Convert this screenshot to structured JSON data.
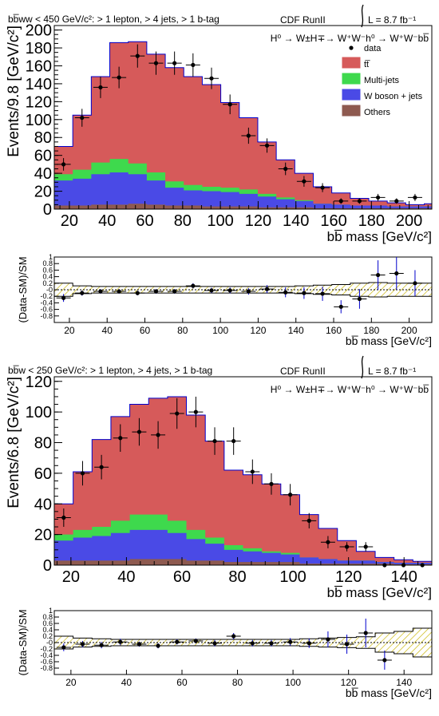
{
  "colors": {
    "ttbar": "#d65a5a",
    "multijet": "#3ed94d",
    "wjets": "#4a4ae6",
    "others": "#8e5a50",
    "outline": "#0000cc",
    "hatch": "#c8b400"
  },
  "chart_data": [
    {
      "type": "area",
      "stacked": true,
      "header_left": "bb̅ww < 450 GeV/c²: > 1 lepton, > 4 jets, > 1 b-tag",
      "header_center": "CDF RunII",
      "lumi": "L = 8.7 fb⁻¹",
      "process": "H⁰ → W±H∓→ W⁺W⁻h⁰ → W⁺W⁻bb̅",
      "ylabel": "Events/9.8 [GeV/c²]",
      "xlabel": "bb̅ mass [GeV/c²]",
      "xlim": [
        12,
        212
      ],
      "ylim": [
        0,
        205
      ],
      "yticks": [
        0,
        20,
        40,
        60,
        80,
        100,
        120,
        140,
        160,
        180,
        200
      ],
      "xticks": [
        20,
        40,
        60,
        80,
        100,
        120,
        140,
        160,
        180,
        200
      ],
      "bin_edges": [
        12,
        21.8,
        31.6,
        41.4,
        51.2,
        61,
        70.8,
        80.6,
        90.4,
        100.2,
        110,
        119.8,
        129.6,
        139.4,
        149.2,
        159,
        168.8,
        178.6,
        188.4,
        198.2,
        208,
        212
      ],
      "legend": [
        {
          "label": "data",
          "kind": "marker"
        },
        {
          "label": "tt̅",
          "key": "ttbar"
        },
        {
          "label": "Multi-jets",
          "key": "multijet"
        },
        {
          "label": "W boson + jets",
          "key": "wjets"
        },
        {
          "label": "Others",
          "key": "others"
        }
      ],
      "series": [
        {
          "name": "Others",
          "key": "others",
          "values": [
            4,
            4,
            5,
            5,
            6,
            5,
            4,
            4,
            3,
            3,
            3,
            2,
            2,
            2,
            1,
            1,
            1,
            1,
            1,
            1,
            1
          ]
        },
        {
          "name": "W boson + jets",
          "key": "wjets",
          "values": [
            28,
            30,
            34,
            36,
            33,
            27,
            20,
            17,
            17,
            16,
            14,
            12,
            9,
            7,
            5,
            4,
            3,
            3,
            2,
            2,
            2
          ]
        },
        {
          "name": "Multi-jets",
          "key": "multijet",
          "values": [
            7,
            10,
            13,
            15,
            12,
            9,
            7,
            6,
            5,
            5,
            5,
            3,
            2,
            1,
            0,
            0,
            0,
            0,
            0,
            0,
            0
          ]
        },
        {
          "name": "tt̅",
          "key": "ttbar",
          "values": [
            31,
            61,
            96,
            130,
            136,
            132,
            127,
            121,
            114,
            95,
            80,
            58,
            42,
            30,
            19,
            13,
            8,
            5,
            4,
            2,
            3
          ]
        }
      ],
      "data_points": [
        {
          "x": 16.9,
          "y": 50,
          "err": 7
        },
        {
          "x": 26.7,
          "y": 102,
          "err": 10
        },
        {
          "x": 36.5,
          "y": 136,
          "err": 12
        },
        {
          "x": 46.3,
          "y": 147,
          "err": 12
        },
        {
          "x": 56.1,
          "y": 171,
          "err": 13
        },
        {
          "x": 65.9,
          "y": 163,
          "err": 13
        },
        {
          "x": 75.7,
          "y": 163,
          "err": 13
        },
        {
          "x": 85.5,
          "y": 161,
          "err": 13
        },
        {
          "x": 95.3,
          "y": 146,
          "err": 12
        },
        {
          "x": 105.1,
          "y": 117,
          "err": 11
        },
        {
          "x": 114.9,
          "y": 82,
          "err": 9
        },
        {
          "x": 124.7,
          "y": 71,
          "err": 8
        },
        {
          "x": 134.5,
          "y": 45,
          "err": 7
        },
        {
          "x": 144.3,
          "y": 31,
          "err": 6
        },
        {
          "x": 154.1,
          "y": 24,
          "err": 5
        },
        {
          "x": 163.9,
          "y": 9,
          "err": 3
        },
        {
          "x": 173.7,
          "y": 9,
          "err": 3
        },
        {
          "x": 183.5,
          "y": 13,
          "err": 4
        },
        {
          "x": 193.3,
          "y": 9,
          "err": 3
        },
        {
          "x": 203.1,
          "y": 13,
          "err": 4
        }
      ]
    },
    {
      "type": "scatter",
      "role": "ratio",
      "ylabel": "(Data-SM)/SM",
      "xlabel": "bb̅ mass [GeV/c²]",
      "xlim": [
        12,
        212
      ],
      "ylim": [
        -1,
        1
      ],
      "yticks": [
        -0.8,
        -0.6,
        -0.4,
        -0.2,
        0,
        0.2,
        0.4,
        0.6,
        0.8,
        1
      ],
      "ytick_labels": [
        "-0.8",
        "-0.6",
        "-0.4",
        "-0.2",
        "-0",
        "0.2",
        "0.4",
        "0.6",
        "0.8",
        "1"
      ],
      "xticks": [
        20,
        40,
        60,
        80,
        100,
        120,
        140,
        160,
        180,
        200
      ],
      "band": [
        0.2,
        0.12,
        0.1,
        0.1,
        0.1,
        0.1,
        0.1,
        0.1,
        0.1,
        0.1,
        0.1,
        0.1,
        0.1,
        0.12,
        0.14,
        0.16,
        0.2,
        0.22,
        0.2,
        0.2,
        0.2
      ],
      "data_points": [
        {
          "x": 16.9,
          "y": -0.25,
          "err": 0.12
        },
        {
          "x": 26.7,
          "y": -0.1,
          "err": 0.08
        },
        {
          "x": 36.5,
          "y": -0.05,
          "err": 0.07
        },
        {
          "x": 46.3,
          "y": -0.05,
          "err": 0.07
        },
        {
          "x": 56.1,
          "y": -0.1,
          "err": 0.07
        },
        {
          "x": 65.9,
          "y": -0.05,
          "err": 0.07
        },
        {
          "x": 75.7,
          "y": -0.05,
          "err": 0.07
        },
        {
          "x": 85.5,
          "y": 0.12,
          "err": 0.08
        },
        {
          "x": 95.3,
          "y": -0.02,
          "err": 0.08
        },
        {
          "x": 105.1,
          "y": -0.02,
          "err": 0.09
        },
        {
          "x": 114.9,
          "y": -0.05,
          "err": 0.1
        },
        {
          "x": 124.7,
          "y": 0.02,
          "err": 0.12
        },
        {
          "x": 134.5,
          "y": -0.08,
          "err": 0.15
        },
        {
          "x": 144.3,
          "y": -0.1,
          "err": 0.18
        },
        {
          "x": 154.1,
          "y": -0.12,
          "err": 0.22
        },
        {
          "x": 163.9,
          "y": -0.52,
          "err": 0.2
        },
        {
          "x": 173.7,
          "y": -0.28,
          "err": 0.3
        },
        {
          "x": 183.5,
          "y": 0.45,
          "err": 0.45
        },
        {
          "x": 193.3,
          "y": 0.5,
          "err": 0.5
        },
        {
          "x": 203.1,
          "y": 0.2,
          "err": 0.4
        }
      ]
    },
    {
      "type": "area",
      "stacked": true,
      "header_left": "bb̅w < 250 GeV/c²: > 1 lepton, > 4 jets, > 1 b-tag",
      "header_center": "CDF RunII",
      "lumi": "L = 8.7 fb⁻¹",
      "process": "H⁰ → W±H∓→ W⁺W⁻h⁰ → W⁺W⁻bb̅",
      "ylabel": "Events/6.8 [GeV/c²]",
      "xlabel": "bb̅ mass [GeV/c²]",
      "xlim": [
        14,
        150
      ],
      "ylim": [
        0,
        123
      ],
      "yticks": [
        0,
        20,
        40,
        60,
        80,
        100,
        120
      ],
      "xticks": [
        20,
        40,
        60,
        80,
        100,
        120,
        140
      ],
      "bin_edges": [
        14,
        20.8,
        27.6,
        34.4,
        41.2,
        48,
        54.8,
        61.6,
        68.4,
        75.2,
        82,
        88.8,
        95.6,
        102.4,
        109.2,
        116,
        122.8,
        129.6,
        136.4,
        143.2,
        150
      ],
      "series": [
        {
          "name": "Others",
          "key": "others",
          "values": [
            3,
            3,
            3,
            3,
            4,
            4,
            4,
            3,
            3,
            2,
            2,
            2,
            2,
            1,
            1,
            1,
            1,
            1,
            0.5,
            0.5
          ]
        },
        {
          "name": "W boson + jets",
          "key": "wjets",
          "values": [
            13,
            15,
            16,
            18,
            19,
            19,
            17,
            14,
            11,
            8,
            7,
            6,
            5,
            4,
            3,
            2,
            2,
            1,
            1,
            1
          ]
        },
        {
          "name": "Multi-jets",
          "key": "multijet",
          "values": [
            4,
            5,
            6,
            8,
            10,
            10,
            8,
            6,
            4,
            3,
            2,
            1,
            1,
            0,
            0,
            0,
            0,
            0,
            0,
            0
          ]
        },
        {
          "name": "tt̅",
          "key": "ttbar",
          "values": [
            20,
            38,
            57,
            68,
            72,
            76,
            81,
            75,
            63,
            49,
            48,
            44,
            38,
            28,
            20,
            13,
            6,
            3,
            2,
            1
          ]
        }
      ],
      "data_points": [
        {
          "x": 17.4,
          "y": 31,
          "err": 6
        },
        {
          "x": 24.2,
          "y": 60,
          "err": 8
        },
        {
          "x": 31,
          "y": 64,
          "err": 8
        },
        {
          "x": 37.8,
          "y": 83,
          "err": 9
        },
        {
          "x": 44.6,
          "y": 87,
          "err": 9
        },
        {
          "x": 51.4,
          "y": 85,
          "err": 9
        },
        {
          "x": 58.2,
          "y": 99,
          "err": 10
        },
        {
          "x": 65,
          "y": 100,
          "err": 10
        },
        {
          "x": 71.8,
          "y": 81,
          "err": 9
        },
        {
          "x": 78.6,
          "y": 81,
          "err": 9
        },
        {
          "x": 85.4,
          "y": 61,
          "err": 8
        },
        {
          "x": 92.2,
          "y": 53,
          "err": 7
        },
        {
          "x": 99,
          "y": 46,
          "err": 7
        },
        {
          "x": 105.8,
          "y": 29,
          "err": 5
        },
        {
          "x": 112.6,
          "y": 15,
          "err": 4
        },
        {
          "x": 119.4,
          "y": 12,
          "err": 3
        },
        {
          "x": 126.2,
          "y": 12,
          "err": 3
        },
        {
          "x": 133,
          "y": 0,
          "err": 0
        },
        {
          "x": 139.8,
          "y": 0,
          "err": 0
        },
        {
          "x": 146.6,
          "y": 0,
          "err": 0
        }
      ]
    },
    {
      "type": "scatter",
      "role": "ratio",
      "ylabel": "(Data-SM)/SM",
      "xlabel": "bb̅ mass [GeV/c²]",
      "xlim": [
        14,
        150
      ],
      "ylim": [
        -1,
        1
      ],
      "yticks": [
        -0.8,
        -0.6,
        -0.4,
        -0.2,
        0,
        0.2,
        0.4,
        0.6,
        0.8,
        1
      ],
      "ytick_labels": [
        "-0.8",
        "-0.6",
        "-0.4",
        "-0.2",
        "-0",
        "0.2",
        "0.4",
        "0.6",
        "0.8",
        "1"
      ],
      "xticks": [
        20,
        40,
        60,
        80,
        100,
        120,
        140
      ],
      "band": [
        0.2,
        0.14,
        0.12,
        0.1,
        0.1,
        0.1,
        0.1,
        0.1,
        0.1,
        0.1,
        0.1,
        0.1,
        0.1,
        0.12,
        0.14,
        0.16,
        0.18,
        0.3,
        0.35,
        0.45
      ],
      "data_points": [
        {
          "x": 17.4,
          "y": -0.15,
          "err": 0.12
        },
        {
          "x": 24.2,
          "y": -0.05,
          "err": 0.1
        },
        {
          "x": 31,
          "y": -0.08,
          "err": 0.1
        },
        {
          "x": 37.8,
          "y": 0.02,
          "err": 0.1
        },
        {
          "x": 44.6,
          "y": -0.05,
          "err": 0.08
        },
        {
          "x": 51.4,
          "y": -0.1,
          "err": 0.08
        },
        {
          "x": 58.2,
          "y": 0.02,
          "err": 0.08
        },
        {
          "x": 65,
          "y": 0.05,
          "err": 0.08
        },
        {
          "x": 71.8,
          "y": -0.02,
          "err": 0.1
        },
        {
          "x": 78.6,
          "y": 0.2,
          "err": 0.1
        },
        {
          "x": 85.4,
          "y": -0.02,
          "err": 0.1
        },
        {
          "x": 92.2,
          "y": -0.02,
          "err": 0.1
        },
        {
          "x": 99,
          "y": 0.02,
          "err": 0.12
        },
        {
          "x": 105.8,
          "y": -0.02,
          "err": 0.15
        },
        {
          "x": 112.6,
          "y": 0.1,
          "err": 0.25
        },
        {
          "x": 119.4,
          "y": -0.05,
          "err": 0.3
        },
        {
          "x": 126.2,
          "y": 0.3,
          "err": 0.45
        },
        {
          "x": 133,
          "y": -0.55,
          "err": 0.3
        }
      ]
    }
  ]
}
